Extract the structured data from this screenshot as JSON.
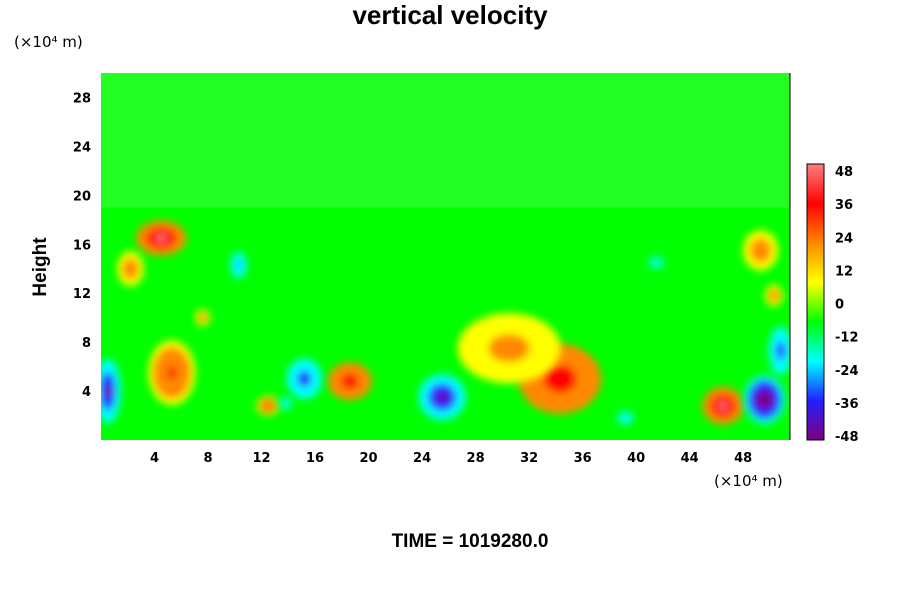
{
  "chart_data": {
    "type": "heatmap",
    "title": "vertical velocity",
    "ylabel": "Height",
    "x_unit": "(×10⁴ m)",
    "y_unit": "(×10⁴ m)",
    "footer": "TIME = 1019280.0",
    "xlim": [
      0,
      51.5
    ],
    "ylim": [
      0,
      30
    ],
    "x_ticks": [
      4,
      8,
      12,
      16,
      20,
      24,
      28,
      32,
      36,
      40,
      44,
      48
    ],
    "y_ticks": [
      4,
      8,
      12,
      16,
      20,
      24,
      28
    ],
    "colorbar": {
      "ticks": [
        48,
        36,
        24,
        12,
        0,
        -12,
        -24,
        -36,
        -48
      ],
      "range": [
        -48,
        48
      ],
      "colors": [
        "#800080",
        "#2020ff",
        "#00ffff",
        "#00ff00",
        "#ffff00",
        "#ff8800",
        "#ff0000",
        "#ff8080"
      ]
    },
    "features": [
      {
        "x": 34.3,
        "y": 5.0,
        "value": 38,
        "sx": 2.8,
        "sy": 2.6
      },
      {
        "x": 46.5,
        "y": 2.8,
        "value": 46,
        "sx": 1.4,
        "sy": 1.4
      },
      {
        "x": 18.6,
        "y": 4.8,
        "value": 34,
        "sx": 1.5,
        "sy": 1.4
      },
      {
        "x": 5.3,
        "y": 5.5,
        "value": 30,
        "sx": 1.6,
        "sy": 2.4
      },
      {
        "x": 4.5,
        "y": 16.5,
        "value": 44,
        "sx": 1.7,
        "sy": 1.3
      },
      {
        "x": 2.2,
        "y": 14.0,
        "value": 22,
        "sx": 0.9,
        "sy": 1.3
      },
      {
        "x": 12.5,
        "y": 2.8,
        "value": 28,
        "sx": 0.8,
        "sy": 0.7
      },
      {
        "x": 7.6,
        "y": 10.0,
        "value": 20,
        "sx": 0.5,
        "sy": 0.6
      },
      {
        "x": 49.3,
        "y": 15.5,
        "value": 20,
        "sx": 1.2,
        "sy": 1.5
      },
      {
        "x": 50.3,
        "y": 11.8,
        "value": 20,
        "sx": 0.6,
        "sy": 0.8
      },
      {
        "x": 0.5,
        "y": 4.0,
        "value": -46,
        "sx": 0.9,
        "sy": 2.4
      },
      {
        "x": 15.2,
        "y": 5.0,
        "value": -36,
        "sx": 1.2,
        "sy": 1.5
      },
      {
        "x": 25.5,
        "y": 3.5,
        "value": -42,
        "sx": 1.6,
        "sy": 1.7
      },
      {
        "x": 49.6,
        "y": 3.3,
        "value": -50,
        "sx": 1.4,
        "sy": 1.8
      },
      {
        "x": 50.8,
        "y": 7.3,
        "value": -38,
        "sx": 0.8,
        "sy": 1.8
      },
      {
        "x": 10.3,
        "y": 14.3,
        "value": -30,
        "sx": 0.6,
        "sy": 1.1
      },
      {
        "x": 13.8,
        "y": 3.0,
        "value": -22,
        "sx": 0.5,
        "sy": 0.6
      },
      {
        "x": 39.2,
        "y": 1.8,
        "value": -22,
        "sx": 0.7,
        "sy": 0.6
      },
      {
        "x": 41.5,
        "y": 14.5,
        "value": -18,
        "sx": 0.8,
        "sy": 0.7
      },
      {
        "x": 30.5,
        "y": 7.5,
        "value": 16,
        "sx": 3.5,
        "sy": 2.6
      },
      {
        "x": 38.5,
        "y": 9.0,
        "value": -12,
        "sx": 2.5,
        "sy": 2.0
      }
    ]
  }
}
